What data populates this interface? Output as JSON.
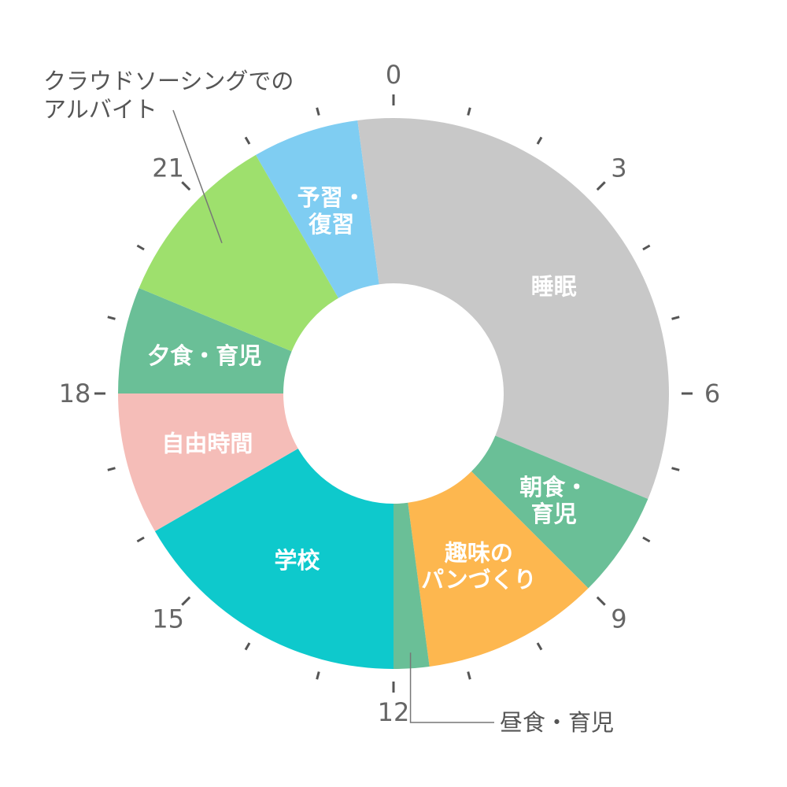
{
  "chart_data": {
    "type": "pie",
    "variant": "donut-24h-clock",
    "unit": "hour",
    "title": "",
    "slices": [
      {
        "label": "睡眠",
        "start": 0,
        "end": 7.5,
        "color": "#c8c8c8",
        "label_lines": [
          "睡眠"
        ]
      },
      {
        "label": "朝食・育児",
        "start": 7.5,
        "end": 9,
        "color": "#6abf97",
        "label_lines": [
          "朝食・",
          "育児"
        ]
      },
      {
        "label": "趣味のパンづくり",
        "start": 9,
        "end": 11.5,
        "color": "#fdb74f",
        "label_lines": [
          "趣味の",
          "パンづくり"
        ]
      },
      {
        "label": "昼食・育児",
        "start": 11.5,
        "end": 12,
        "color": "#6abf97",
        "label_lines": []
      },
      {
        "label": "学校",
        "start": 12,
        "end": 16,
        "color": "#0ec9cc",
        "label_lines": [
          "学校"
        ]
      },
      {
        "label": "自由時間",
        "start": 16,
        "end": 18,
        "color": "#f5bdb8",
        "label_lines": [
          "自由時間"
        ]
      },
      {
        "label": "夕食・育児",
        "start": 18,
        "end": 19.5,
        "color": "#6abf97",
        "label_lines": [
          "夕食・育児"
        ]
      },
      {
        "label": "クラウドソーシングでのアルバイト",
        "start": 19.5,
        "end": 22,
        "color": "#9ee06d",
        "label_lines": []
      },
      {
        "label": "予習・復習",
        "start": 22,
        "end": 23.5,
        "color": "#7fcdf2",
        "label_lines": [
          "予習・",
          "復習"
        ]
      },
      {
        "label": "睡眠",
        "start": 23.5,
        "end": 24,
        "color": "#c8c8c8",
        "label_lines": []
      }
    ],
    "hour_labels": [
      "0",
      "3",
      "6",
      "9",
      "12",
      "15",
      "18",
      "21"
    ],
    "callouts": [
      {
        "slice": "クラウドソーシングでのアルバイト",
        "lines": [
          "クラウドソーシングでの",
          "アルバイト"
        ]
      },
      {
        "slice": "昼食・育児",
        "lines": [
          "昼食・育児"
        ]
      }
    ]
  }
}
